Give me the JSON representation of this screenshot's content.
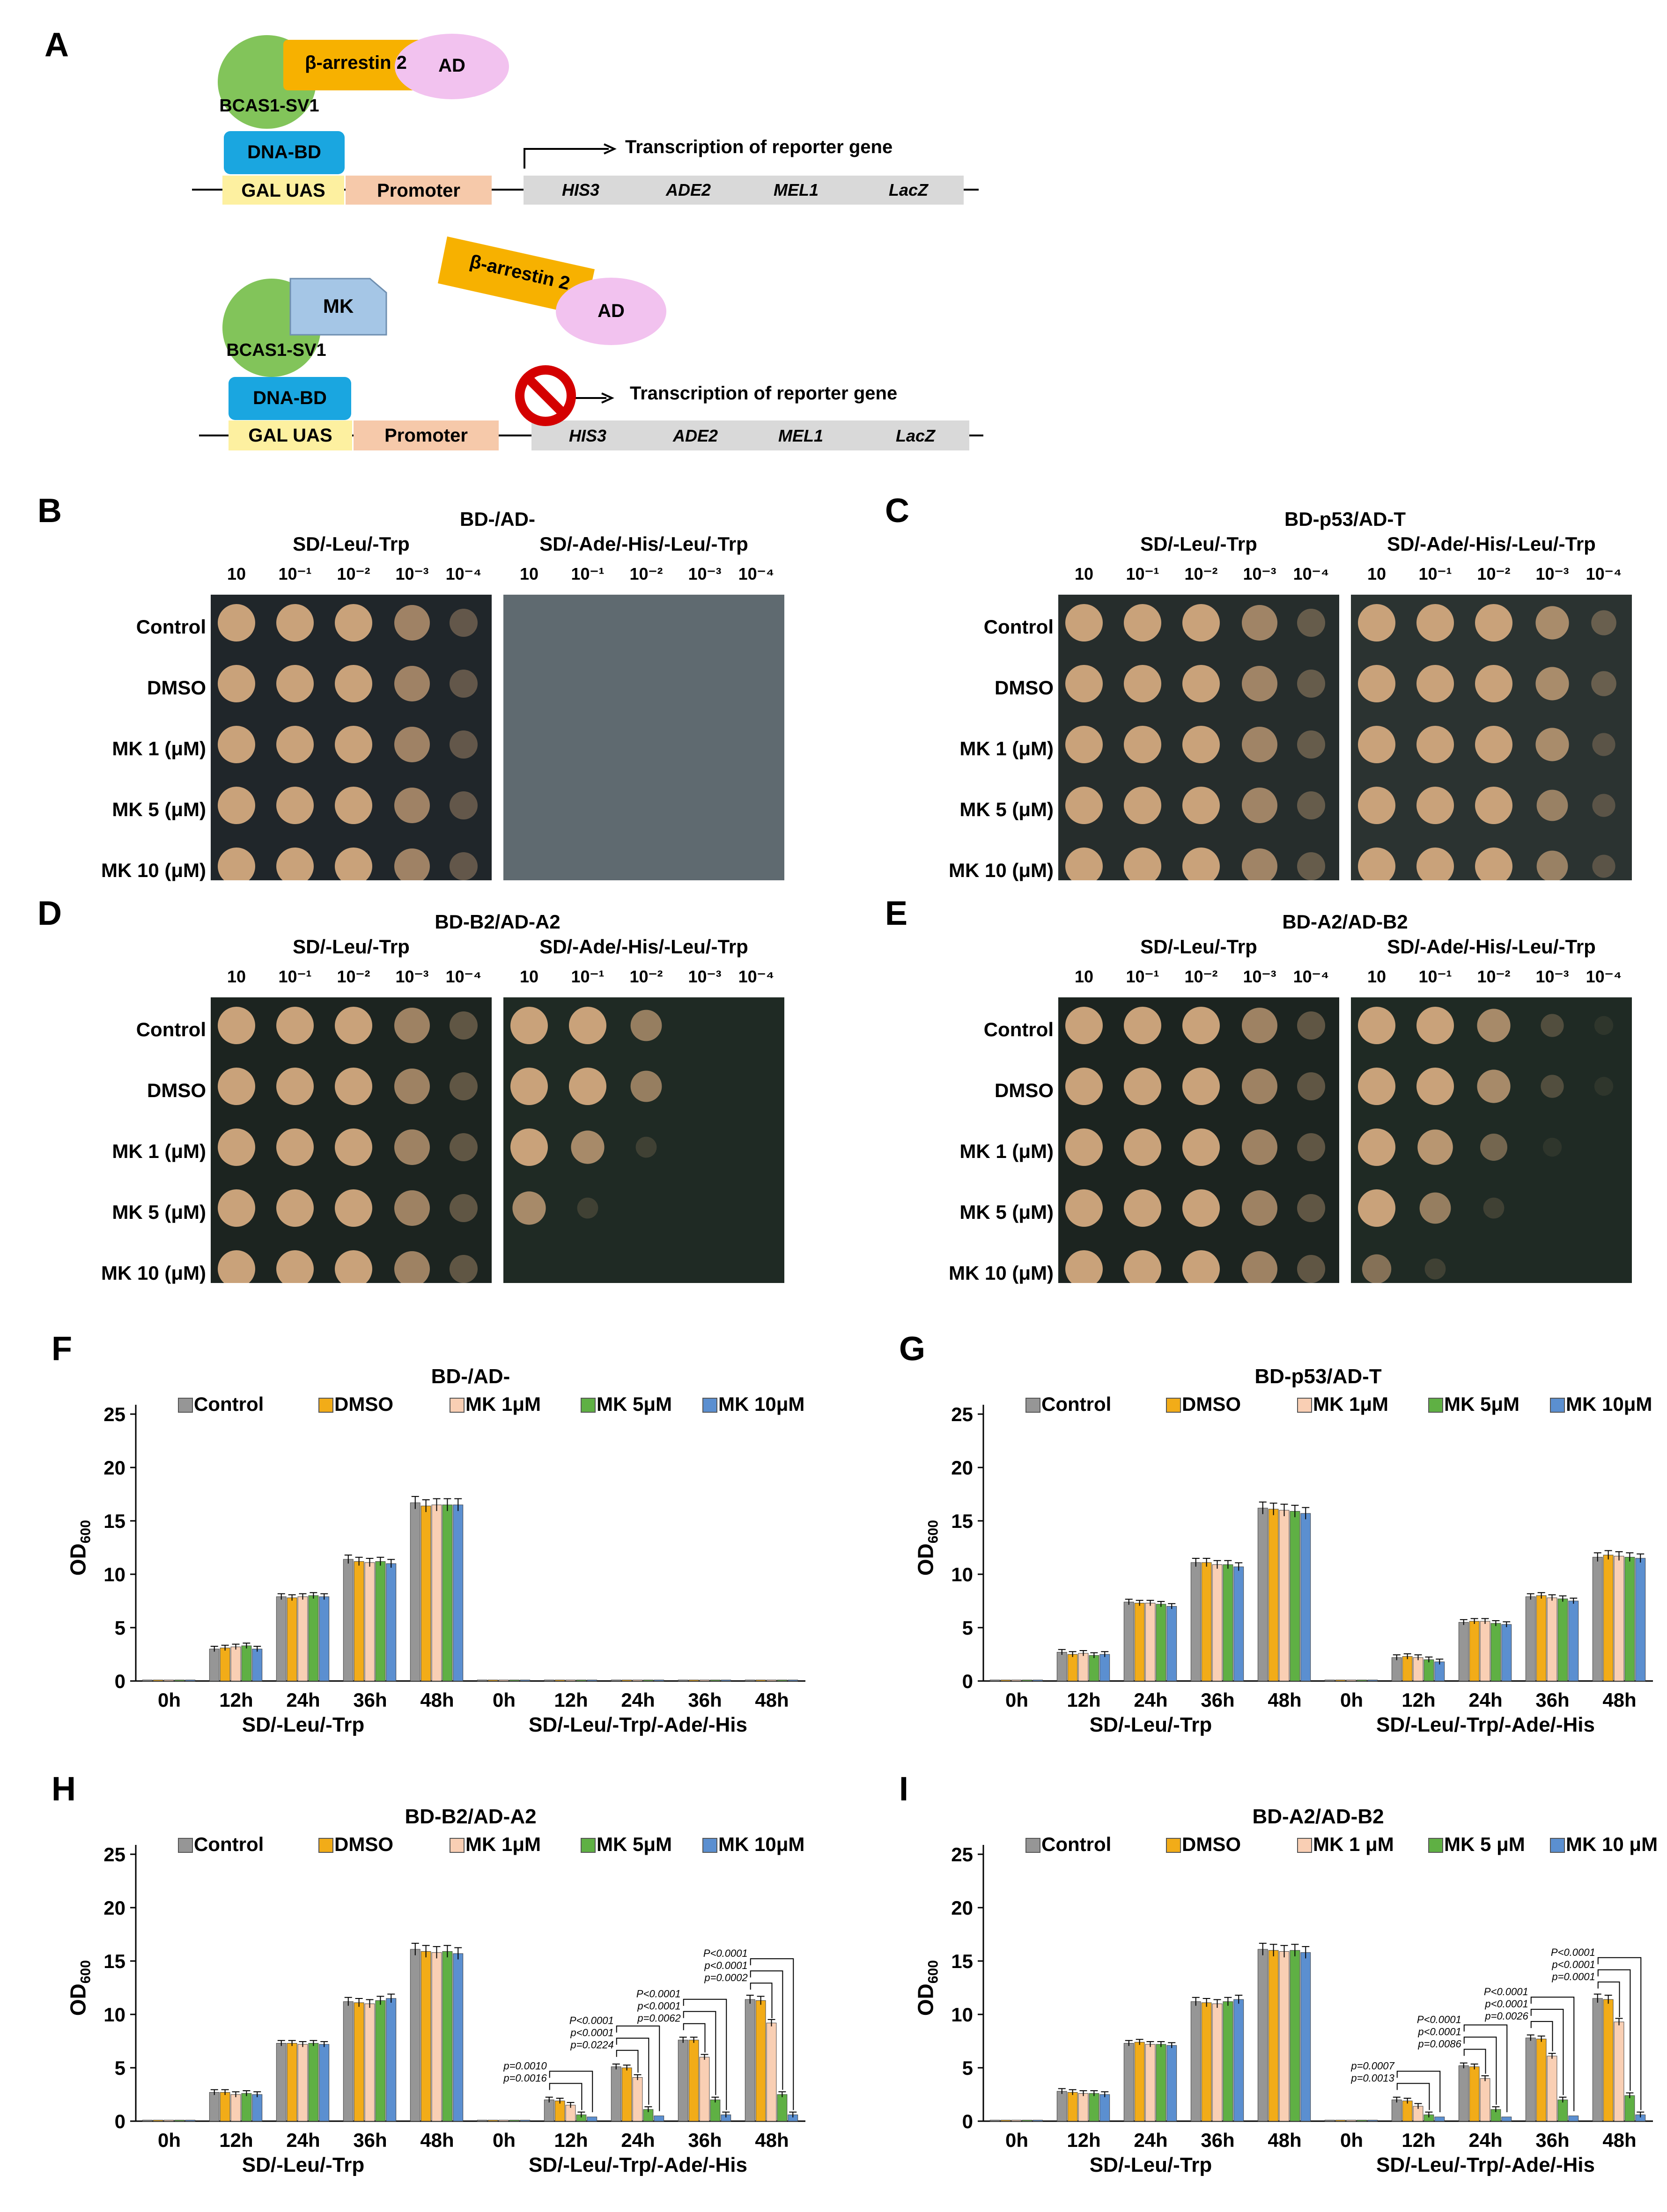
{
  "panel_a": {
    "label": "A",
    "top": {
      "beta_arrestin": "β-arrestin 2",
      "ad": "AD",
      "bcas": "BCAS1-SV1",
      "dna_bd": "DNA-BD",
      "gal_uas": "GAL UAS",
      "promoter": "Promoter",
      "transcription": "Transcription of reporter gene",
      "genes": [
        "HIS3",
        "ADE2",
        "MEL1",
        "LacZ"
      ]
    },
    "bottom": {
      "mk": "MK",
      "beta_arrestin": "β-arrestin 2",
      "ad": "AD",
      "bcas": "BCAS1-SV1",
      "dna_bd": "DNA-BD",
      "gal_uas": "GAL UAS",
      "promoter": "Promoter",
      "transcription": "Transcription of reporter gene",
      "genes": [
        "HIS3",
        "ADE2",
        "MEL1",
        "LacZ"
      ]
    }
  },
  "spot_panels": [
    {
      "label": "B",
      "title": "BD-/AD-",
      "media": [
        "SD/-Leu/-Trp",
        "SD/-Ade/-His/-Leu/-Trp"
      ]
    },
    {
      "label": "C",
      "title": "BD-p53/AD-T",
      "media": [
        "SD/-Leu/-Trp",
        "SD/-Ade/-His/-Leu/-Trp"
      ]
    },
    {
      "label": "D",
      "title": "BD-B2/AD-A2",
      "media": [
        "SD/-Leu/-Trp",
        "SD/-Ade/-His/-Leu/-Trp"
      ]
    },
    {
      "label": "E",
      "title": "BD-A2/AD-B2",
      "media": [
        "SD/-Leu/-Trp",
        "SD/-Ade/-His/-Leu/-Trp"
      ]
    }
  ],
  "spot_common": {
    "dilutions": [
      "10",
      "10⁻¹",
      "10⁻²",
      "10⁻³",
      "10⁻⁴"
    ],
    "rows": [
      "Control",
      "DMSO",
      "MK  1  (μM)",
      "MK  5  (μM)",
      "MK 10 (μM)"
    ]
  },
  "chart_data": [
    {
      "label": "F",
      "type": "bar",
      "title": "BD-/AD-",
      "categories": [
        "0h",
        "12h",
        "24h",
        "36h",
        "48h",
        "0h",
        "12h",
        "24h",
        "36h",
        "48h"
      ],
      "groups": [
        "SD/-Leu/-Trp",
        "SD/-Leu/-Trp/-Ade/-His"
      ],
      "ylabel": "OD600",
      "ylim": [
        0,
        25
      ],
      "yticks": [
        0,
        5,
        10,
        15,
        20,
        25
      ],
      "legend": [
        "Control",
        "DMSO",
        "MK 1μM",
        "MK 5μM",
        "MK 10μM"
      ],
      "series": [
        {
          "name": "Control",
          "values": [
            0.1,
            3.0,
            7.9,
            11.4,
            16.7,
            0.1,
            0.1,
            0.1,
            0.1,
            0.1
          ]
        },
        {
          "name": "DMSO",
          "values": [
            0.1,
            3.1,
            7.8,
            11.2,
            16.4,
            0.1,
            0.1,
            0.1,
            0.1,
            0.1
          ]
        },
        {
          "name": "MK 1μM",
          "values": [
            0.1,
            3.2,
            7.9,
            11.1,
            16.5,
            0.1,
            0.1,
            0.1,
            0.1,
            0.1
          ]
        },
        {
          "name": "MK 5μM",
          "values": [
            0.1,
            3.3,
            8.0,
            11.2,
            16.5,
            0.1,
            0.1,
            0.1,
            0.1,
            0.1
          ]
        },
        {
          "name": "MK 10μM",
          "values": [
            0.1,
            3.0,
            7.9,
            11.0,
            16.5,
            0.1,
            0.1,
            0.1,
            0.1,
            0.1
          ]
        }
      ],
      "annotations": []
    },
    {
      "label": "G",
      "type": "bar",
      "title": "BD-p53/AD-T",
      "categories": [
        "0h",
        "12h",
        "24h",
        "36h",
        "48h",
        "0h",
        "12h",
        "24h",
        "36h",
        "48h"
      ],
      "groups": [
        "SD/-Leu/-Trp",
        "SD/-Leu/-Trp/-Ade/-His"
      ],
      "ylabel": "OD600",
      "ylim": [
        0,
        25
      ],
      "yticks": [
        0,
        5,
        10,
        15,
        20,
        25
      ],
      "legend": [
        "Control",
        "DMSO",
        "MK 1μM",
        "MK 5μM",
        "MK 10μM"
      ],
      "series": [
        {
          "name": "Control",
          "values": [
            0.1,
            2.7,
            7.4,
            11.1,
            16.2,
            0.1,
            2.2,
            5.5,
            7.9,
            11.6
          ]
        },
        {
          "name": "DMSO",
          "values": [
            0.1,
            2.5,
            7.3,
            11.1,
            16.1,
            0.1,
            2.3,
            5.6,
            8.0,
            11.8
          ]
        },
        {
          "name": "MK 1μM",
          "values": [
            0.1,
            2.6,
            7.3,
            10.9,
            16.0,
            0.1,
            2.2,
            5.6,
            7.8,
            11.7
          ]
        },
        {
          "name": "MK 5μM",
          "values": [
            0.1,
            2.4,
            7.2,
            10.9,
            15.9,
            0.1,
            2.0,
            5.4,
            7.7,
            11.6
          ]
        },
        {
          "name": "MK 10μM",
          "values": [
            0.1,
            2.5,
            7.0,
            10.7,
            15.7,
            0.1,
            1.8,
            5.3,
            7.5,
            11.5
          ]
        }
      ],
      "annotations": []
    },
    {
      "label": "H",
      "type": "bar",
      "title": "BD-B2/AD-A2",
      "categories": [
        "0h",
        "12h",
        "24h",
        "36h",
        "48h",
        "0h",
        "12h",
        "24h",
        "36h",
        "48h"
      ],
      "groups": [
        "SD/-Leu/-Trp",
        "SD/-Leu/-Trp/-Ade/-His"
      ],
      "ylabel": "OD600",
      "ylim": [
        0,
        25
      ],
      "yticks": [
        0,
        5,
        10,
        15,
        20,
        25
      ],
      "legend": [
        "Control",
        "DMSO",
        "MK 1μM",
        "MK 5μM",
        "MK 10μM"
      ],
      "series": [
        {
          "name": "Control",
          "values": [
            0.1,
            2.7,
            7.3,
            11.2,
            16.1,
            0.1,
            2.0,
            5.1,
            7.6,
            11.4
          ]
        },
        {
          "name": "DMSO",
          "values": [
            0.1,
            2.7,
            7.3,
            11.1,
            15.9,
            0.1,
            1.9,
            5.0,
            7.6,
            11.3
          ]
        },
        {
          "name": "MK 1μM",
          "values": [
            0.1,
            2.5,
            7.2,
            11.0,
            15.8,
            0.1,
            1.5,
            4.1,
            6.0,
            9.2
          ]
        },
        {
          "name": "MK 5μM",
          "values": [
            0.1,
            2.6,
            7.3,
            11.3,
            15.9,
            0.1,
            0.6,
            1.1,
            2.0,
            2.5
          ]
        },
        {
          "name": "MK 10μM",
          "values": [
            0.1,
            2.5,
            7.2,
            11.5,
            15.7,
            0.1,
            0.4,
            0.5,
            0.6,
            0.6
          ]
        }
      ],
      "annotations": [
        {
          "group_index": 6,
          "lines": [
            "p=0.0010",
            "p=0.0016"
          ]
        },
        {
          "group_index": 7,
          "lines": [
            "P<0.0001",
            "p<0.0001",
            "p=0.0224"
          ]
        },
        {
          "group_index": 8,
          "lines": [
            "P<0.0001",
            "p<0.0001",
            "p=0.0062"
          ]
        },
        {
          "group_index": 9,
          "lines": [
            "P<0.0001",
            "p<0.0001",
            "p=0.0002"
          ]
        }
      ]
    },
    {
      "label": "I",
      "type": "bar",
      "title": "BD-A2/AD-B2",
      "categories": [
        "0h",
        "12h",
        "24h",
        "36h",
        "48h",
        "0h",
        "12h",
        "24h",
        "36h",
        "48h"
      ],
      "groups": [
        "SD/-Leu/-Trp",
        "SD/-Leu/-Trp/-Ade/-His"
      ],
      "ylabel": "OD600",
      "ylim": [
        0,
        25
      ],
      "yticks": [
        0,
        5,
        10,
        15,
        20,
        25
      ],
      "legend": [
        "Control",
        "DMSO",
        "MK 1 μM",
        "MK 5 μM",
        "MK 10 μM"
      ],
      "series": [
        {
          "name": "Control",
          "values": [
            0.1,
            2.8,
            7.3,
            11.2,
            16.1,
            0.1,
            2.0,
            5.2,
            7.8,
            11.5
          ]
        },
        {
          "name": "DMSO",
          "values": [
            0.1,
            2.7,
            7.4,
            11.1,
            16.0,
            0.1,
            1.9,
            5.1,
            7.7,
            11.4
          ]
        },
        {
          "name": "MK 1 μM",
          "values": [
            0.1,
            2.6,
            7.2,
            11.0,
            15.9,
            0.1,
            1.4,
            4.0,
            6.1,
            9.3
          ]
        },
        {
          "name": "MK 5 μM",
          "values": [
            0.1,
            2.6,
            7.2,
            11.2,
            16.0,
            0.1,
            0.6,
            1.1,
            2.0,
            2.4
          ]
        },
        {
          "name": "MK 10 μM",
          "values": [
            0.1,
            2.5,
            7.1,
            11.4,
            15.8,
            0.1,
            0.4,
            0.4,
            0.5,
            0.6
          ]
        }
      ],
      "annotations": [
        {
          "group_index": 6,
          "lines": [
            "p=0.0007",
            "p=0.0013"
          ]
        },
        {
          "group_index": 7,
          "lines": [
            "P<0.0001",
            "p<0.0001",
            "p=0.0086"
          ]
        },
        {
          "group_index": 8,
          "lines": [
            "P<0.0001",
            "p<0.0001",
            "p=0.0026"
          ]
        },
        {
          "group_index": 9,
          "lines": [
            "P<0.0001",
            "p<0.0001",
            "p=0.0001"
          ]
        }
      ]
    }
  ],
  "colors": {
    "series": [
      "#969696",
      "#f2ac18",
      "#f9cfb4",
      "#5fb044",
      "#5b8fd0"
    ]
  }
}
